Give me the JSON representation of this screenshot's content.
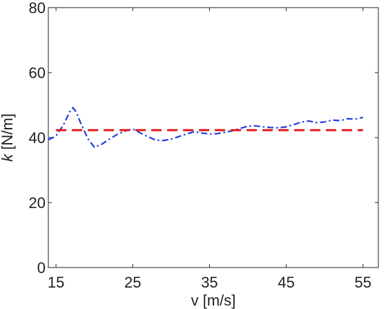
{
  "chart_data": {
    "type": "line",
    "title": "",
    "xlabel": "v [m/s]",
    "ylabel": {
      "symbol": "k",
      "unit": " [N/m]"
    },
    "xlim": [
      14,
      57
    ],
    "ylim": [
      0,
      80
    ],
    "xticks": [
      15,
      25,
      35,
      45,
      55
    ],
    "yticks": [
      0,
      20,
      40,
      60,
      80
    ],
    "grid": false,
    "series": [
      {
        "style": "dash-dot",
        "color": "#1f3de0",
        "x": [
          14,
          15,
          16,
          16.8,
          17.2,
          17.6,
          18.3,
          19.2,
          20,
          21,
          22,
          23,
          24,
          25,
          25.5,
          26.5,
          28,
          29,
          30,
          31,
          32,
          33,
          34,
          35,
          36,
          37,
          38,
          39,
          40,
          41,
          42,
          43,
          44,
          45,
          46,
          47,
          48,
          49,
          50,
          51,
          52,
          53,
          54,
          55
        ],
        "values": [
          39.3,
          40.5,
          44,
          48,
          49.2,
          48,
          44,
          39.5,
          37,
          38,
          39.6,
          41,
          42,
          42.6,
          42,
          40.8,
          39.2,
          39.1,
          39.5,
          40.3,
          41.1,
          41.8,
          41.4,
          41.1,
          41.2,
          41.6,
          42.1,
          42.8,
          43.5,
          43.6,
          43.3,
          43.1,
          43.0,
          43.3,
          44.0,
          44.8,
          45.1,
          44.6,
          44.8,
          45.4,
          45.2,
          45.8,
          45.7,
          46.2
        ]
      },
      {
        "style": "dashed",
        "color": "#e01a1a",
        "x": [
          15,
          55
        ],
        "values": [
          42.3,
          42.3
        ]
      }
    ]
  }
}
